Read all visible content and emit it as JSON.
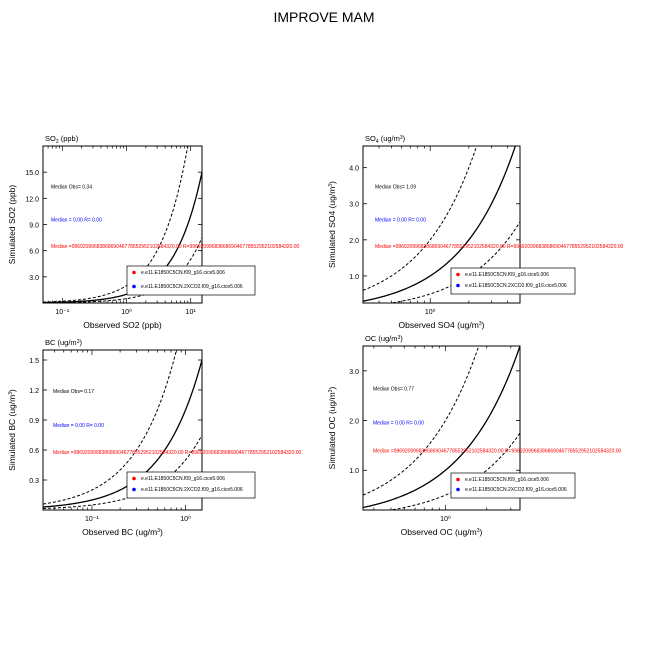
{
  "title": "IMPROVE MAM",
  "colors": {
    "red": "#ff0000",
    "blue": "#0000ff",
    "black": "#000000"
  },
  "chart_data": [
    {
      "id": "so2",
      "type": "scatter",
      "title": "SO<sub>2</sub> (ppb)",
      "title_text": "SO2 (ppb)",
      "xlabel": "Observed SO2 (ppb)",
      "ylabel": "Simulated SO2 (ppb)",
      "xscale": "log",
      "xlim": [
        0.05,
        15
      ],
      "ylim": [
        0,
        18
      ],
      "xticks": [
        {
          "v": 0.1,
          "label": "10⁻¹"
        },
        {
          "v": 1,
          "label": "10⁰"
        },
        {
          "v": 10,
          "label": "10¹"
        }
      ],
      "yticks": [
        3,
        6,
        9,
        12,
        15
      ],
      "ytick_labels": [
        "3.0",
        "6.0",
        "9.0",
        "12.0",
        "15.0"
      ],
      "stats": {
        "median_obs": "Median Obs= 0.34",
        "median_blue": "Median = 0.00  R= 0.00",
        "median_red": "Median =9969209968386869046778552952102584320.00  R=9969209968386869046778552952102584320.00"
      },
      "legend": [
        {
          "label": "e.e11.E1850C5CN.f09_g16.cice5.006",
          "color": "#ff0000"
        },
        {
          "label": "e.e11.E1850C5CN.2XCO2.f09_g16.cice5.006",
          "color": "#0000ff"
        }
      ],
      "series": []
    },
    {
      "id": "so4",
      "type": "scatter",
      "title_text": "SO4 (ug/m3)",
      "xlabel": "Observed SO4 (ug/m3)",
      "ylabel": "Simulated SO4 (ug/m3)",
      "xscale": "log",
      "xlim": [
        0.3,
        5
      ],
      "ylim": [
        0.25,
        4.6
      ],
      "xticks": [
        {
          "v": 1,
          "label": "10⁰"
        }
      ],
      "yticks": [
        1,
        2,
        3,
        4
      ],
      "ytick_labels": [
        "1.0",
        "2.0",
        "3.0",
        "4.0"
      ],
      "stats": {
        "median_obs": "Median Obs= 1.09",
        "median_blue": "Median = 0.00  R= 0.00",
        "median_red": "Median =9969209968386869046778552952102584320.00  R=9969209968386869046778552952102584320.00"
      },
      "legend": [
        {
          "label": "e.e11.E1850C5CN.f09_g16.cice5.006",
          "color": "#ff0000"
        },
        {
          "label": "e.e11.E1850C5CN.2XCO2.f09_g16.cice5.006",
          "color": "#0000ff"
        }
      ],
      "series": []
    },
    {
      "id": "bc",
      "type": "scatter",
      "title_text": "BC (ug/m3)",
      "xlabel": "Observed BC (ug/m3)",
      "ylabel": "Simulated BC (ug/m3)",
      "xscale": "log",
      "xlim": [
        0.03,
        1.5
      ],
      "ylim": [
        0,
        1.6
      ],
      "xticks": [
        {
          "v": 0.1,
          "label": "10⁻¹"
        },
        {
          "v": 1,
          "label": "10⁰"
        }
      ],
      "yticks": [
        0.3,
        0.6,
        0.9,
        1.2,
        1.5
      ],
      "ytick_labels": [
        "0.3",
        "0.6",
        "0.9",
        "1.2",
        "1.5"
      ],
      "stats": {
        "median_obs": "Median Obs= 0.17",
        "median_blue": "Median = 0.00  R= 0.00",
        "median_red": "Median =9969209968386869046778552952102584320.00  R=9969209968386869046778552952102584320.00"
      },
      "legend": [
        {
          "label": "e.e11.E1850C5CN.f09_g16.cice5.006",
          "color": "#ff0000"
        },
        {
          "label": "e.e11.E1850C5CN.2XCO2.f09_g16.cice5.006",
          "color": "#0000ff"
        }
      ],
      "series": []
    },
    {
      "id": "oc",
      "type": "scatter",
      "title_text": "OC (ug/m3)",
      "xlabel": "Observed OC (ug/m3)",
      "ylabel": "Simulated OC (ug/m3)",
      "xscale": "log",
      "xlim": [
        0.25,
        3.5
      ],
      "ylim": [
        0.2,
        3.5
      ],
      "xticks": [
        {
          "v": 1,
          "label": "10⁰"
        }
      ],
      "yticks": [
        1,
        2,
        3
      ],
      "ytick_labels": [
        "1.0",
        "2.0",
        "3.0"
      ],
      "stats": {
        "median_obs": "Median Obs= 0.77",
        "median_blue": "Median = 0.00  R= 0.00",
        "median_red": "Median =9969209968386869046778552952102584320.00  R=9969209968386869046778552952102584320.00"
      },
      "legend": [
        {
          "label": "e.e11.E1850C5CN.f09_g16.cice5.006",
          "color": "#ff0000"
        },
        {
          "label": "e.e11.E1850C5CN.2XCO2.f09_g16.cice5.006",
          "color": "#0000ff"
        }
      ],
      "series": []
    }
  ]
}
